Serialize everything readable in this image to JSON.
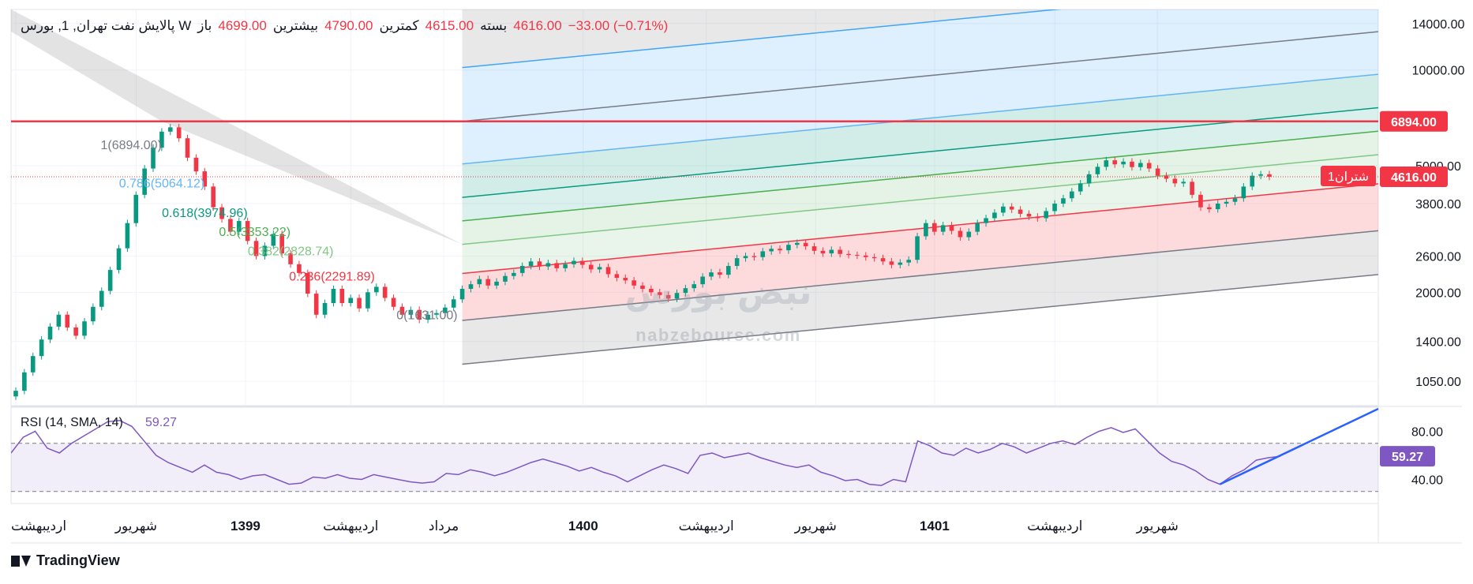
{
  "header": {
    "symbol": "پالایش نفت تهران, 1, بورس W",
    "open_label": "باز",
    "open": "4699.00",
    "high_label": "بیشترین",
    "high": "4790.00",
    "low_label": "کمترین",
    "low": "4615.00",
    "close_label": "بسته",
    "close": "4616.00",
    "change": "−33.00 (−0.71%)"
  },
  "brand": {
    "name": "TradingView"
  },
  "watermark": {
    "site": "nabzebourse.com"
  },
  "colors": {
    "up": "#089981",
    "down": "#f23645",
    "rsi": "#7e57c2",
    "resistance": "#f23645",
    "trendline": "#2962ff"
  },
  "chart_data": [
    {
      "type": "candlestick",
      "y_scale": "log",
      "ylim": [
        880,
        15500
      ],
      "price_ticks": [
        "14000.00",
        "10000.00",
        "5000.00",
        "3800.00",
        "2600.00",
        "2000.00",
        "1400.00",
        "1050.00"
      ],
      "time_labels": [
        "اردیبهشت",
        "شهریور",
        "1399",
        "اردیبهشت",
        "مرداد",
        "1400",
        "اردیبهشت",
        "شهریور",
        "1401",
        "اردیبهشت",
        "شهریور"
      ],
      "time_labels_bold": [
        false,
        false,
        true,
        false,
        false,
        true,
        false,
        false,
        true,
        false,
        false
      ],
      "closes": [
        980,
        1120,
        1260,
        1420,
        1560,
        1700,
        1550,
        1460,
        1620,
        1800,
        2020,
        2350,
        2750,
        3300,
        4050,
        4900,
        5700,
        6400,
        6600,
        6100,
        5300,
        4800,
        4300,
        3700,
        3400,
        3100,
        3350,
        2900,
        2600,
        2800,
        3050,
        2650,
        2450,
        2300,
        1980,
        1700,
        1850,
        2050,
        1850,
        1920,
        1780,
        2000,
        2080,
        1920,
        1800,
        1700,
        1760,
        1640,
        1700,
        1720,
        1790,
        1900,
        2050,
        2120,
        2200,
        2100,
        2160,
        2250,
        2300,
        2420,
        2500,
        2410,
        2470,
        2380,
        2450,
        2510,
        2440,
        2360,
        2400,
        2280,
        2220,
        2180,
        2100,
        2050,
        2000,
        1960,
        1910,
        1990,
        2060,
        2120,
        2240,
        2310,
        2270,
        2420,
        2560,
        2600,
        2580,
        2690,
        2740,
        2710,
        2820,
        2860,
        2790,
        2700,
        2650,
        2720,
        2640,
        2620,
        2610,
        2580,
        2560,
        2500,
        2440,
        2480,
        2530,
        3000,
        3300,
        3100,
        3250,
        3120,
        2980,
        3100,
        3300,
        3420,
        3560,
        3720,
        3640,
        3530,
        3460,
        3420,
        3600,
        3800,
        3950,
        4150,
        4400,
        4700,
        4960,
        5200,
        5050,
        5150,
        4950,
        5100,
        4900,
        4650,
        4550,
        4400,
        4450,
        4050,
        3700,
        3650,
        3800,
        3850,
        3950,
        4300,
        4650,
        4700,
        4616
      ],
      "series": [
        {
          "name": "شتران1",
          "last": "4616.00"
        }
      ],
      "resistance": {
        "value": 6894,
        "label": "6894.00"
      },
      "fib_channel": {
        "low": 1631,
        "high": 6894,
        "levels": [
          {
            "ratio": 0,
            "label": "0(1631.00)"
          },
          {
            "ratio": 0.236,
            "label": "0.236(2291.89)"
          },
          {
            "ratio": 0.382,
            "label": "0.382(2828.74)"
          },
          {
            "ratio": 0.5,
            "label": "0.5(3353.22)"
          },
          {
            "ratio": 0.618,
            "label": "0.618(3974.96)"
          },
          {
            "ratio": 0.786,
            "label": "0.786(5064.12)"
          },
          {
            "ratio": 1,
            "label": "1(6894.00)"
          }
        ]
      }
    },
    {
      "type": "line",
      "name": "RSI (14, SMA, 14)",
      "last": "59.27",
      "ylim": [
        20,
        100
      ],
      "ticks": [
        "80.00",
        "40.00"
      ],
      "bands": [
        70,
        30
      ],
      "values": [
        62,
        75,
        80,
        66,
        62,
        70,
        76,
        82,
        88,
        89,
        84,
        72,
        60,
        54,
        50,
        46,
        52,
        46,
        44,
        40,
        43,
        44,
        40,
        36,
        37,
        42,
        41,
        44,
        41,
        40,
        44,
        42,
        40,
        38,
        37,
        38,
        45,
        44,
        48,
        46,
        43,
        46,
        50,
        54,
        57,
        54,
        51,
        47,
        50,
        46,
        43,
        38,
        43,
        48,
        52,
        49,
        45,
        60,
        62,
        58,
        60,
        62,
        58,
        55,
        52,
        50,
        52,
        46,
        43,
        39,
        40,
        36,
        35,
        40,
        38,
        72,
        68,
        62,
        60,
        66,
        62,
        65,
        70,
        67,
        62,
        66,
        70,
        72,
        69,
        75,
        80,
        83,
        79,
        82,
        72,
        62,
        55,
        52,
        47,
        40,
        36,
        43,
        48,
        56,
        58,
        59.27
      ],
      "trendline": true
    }
  ]
}
